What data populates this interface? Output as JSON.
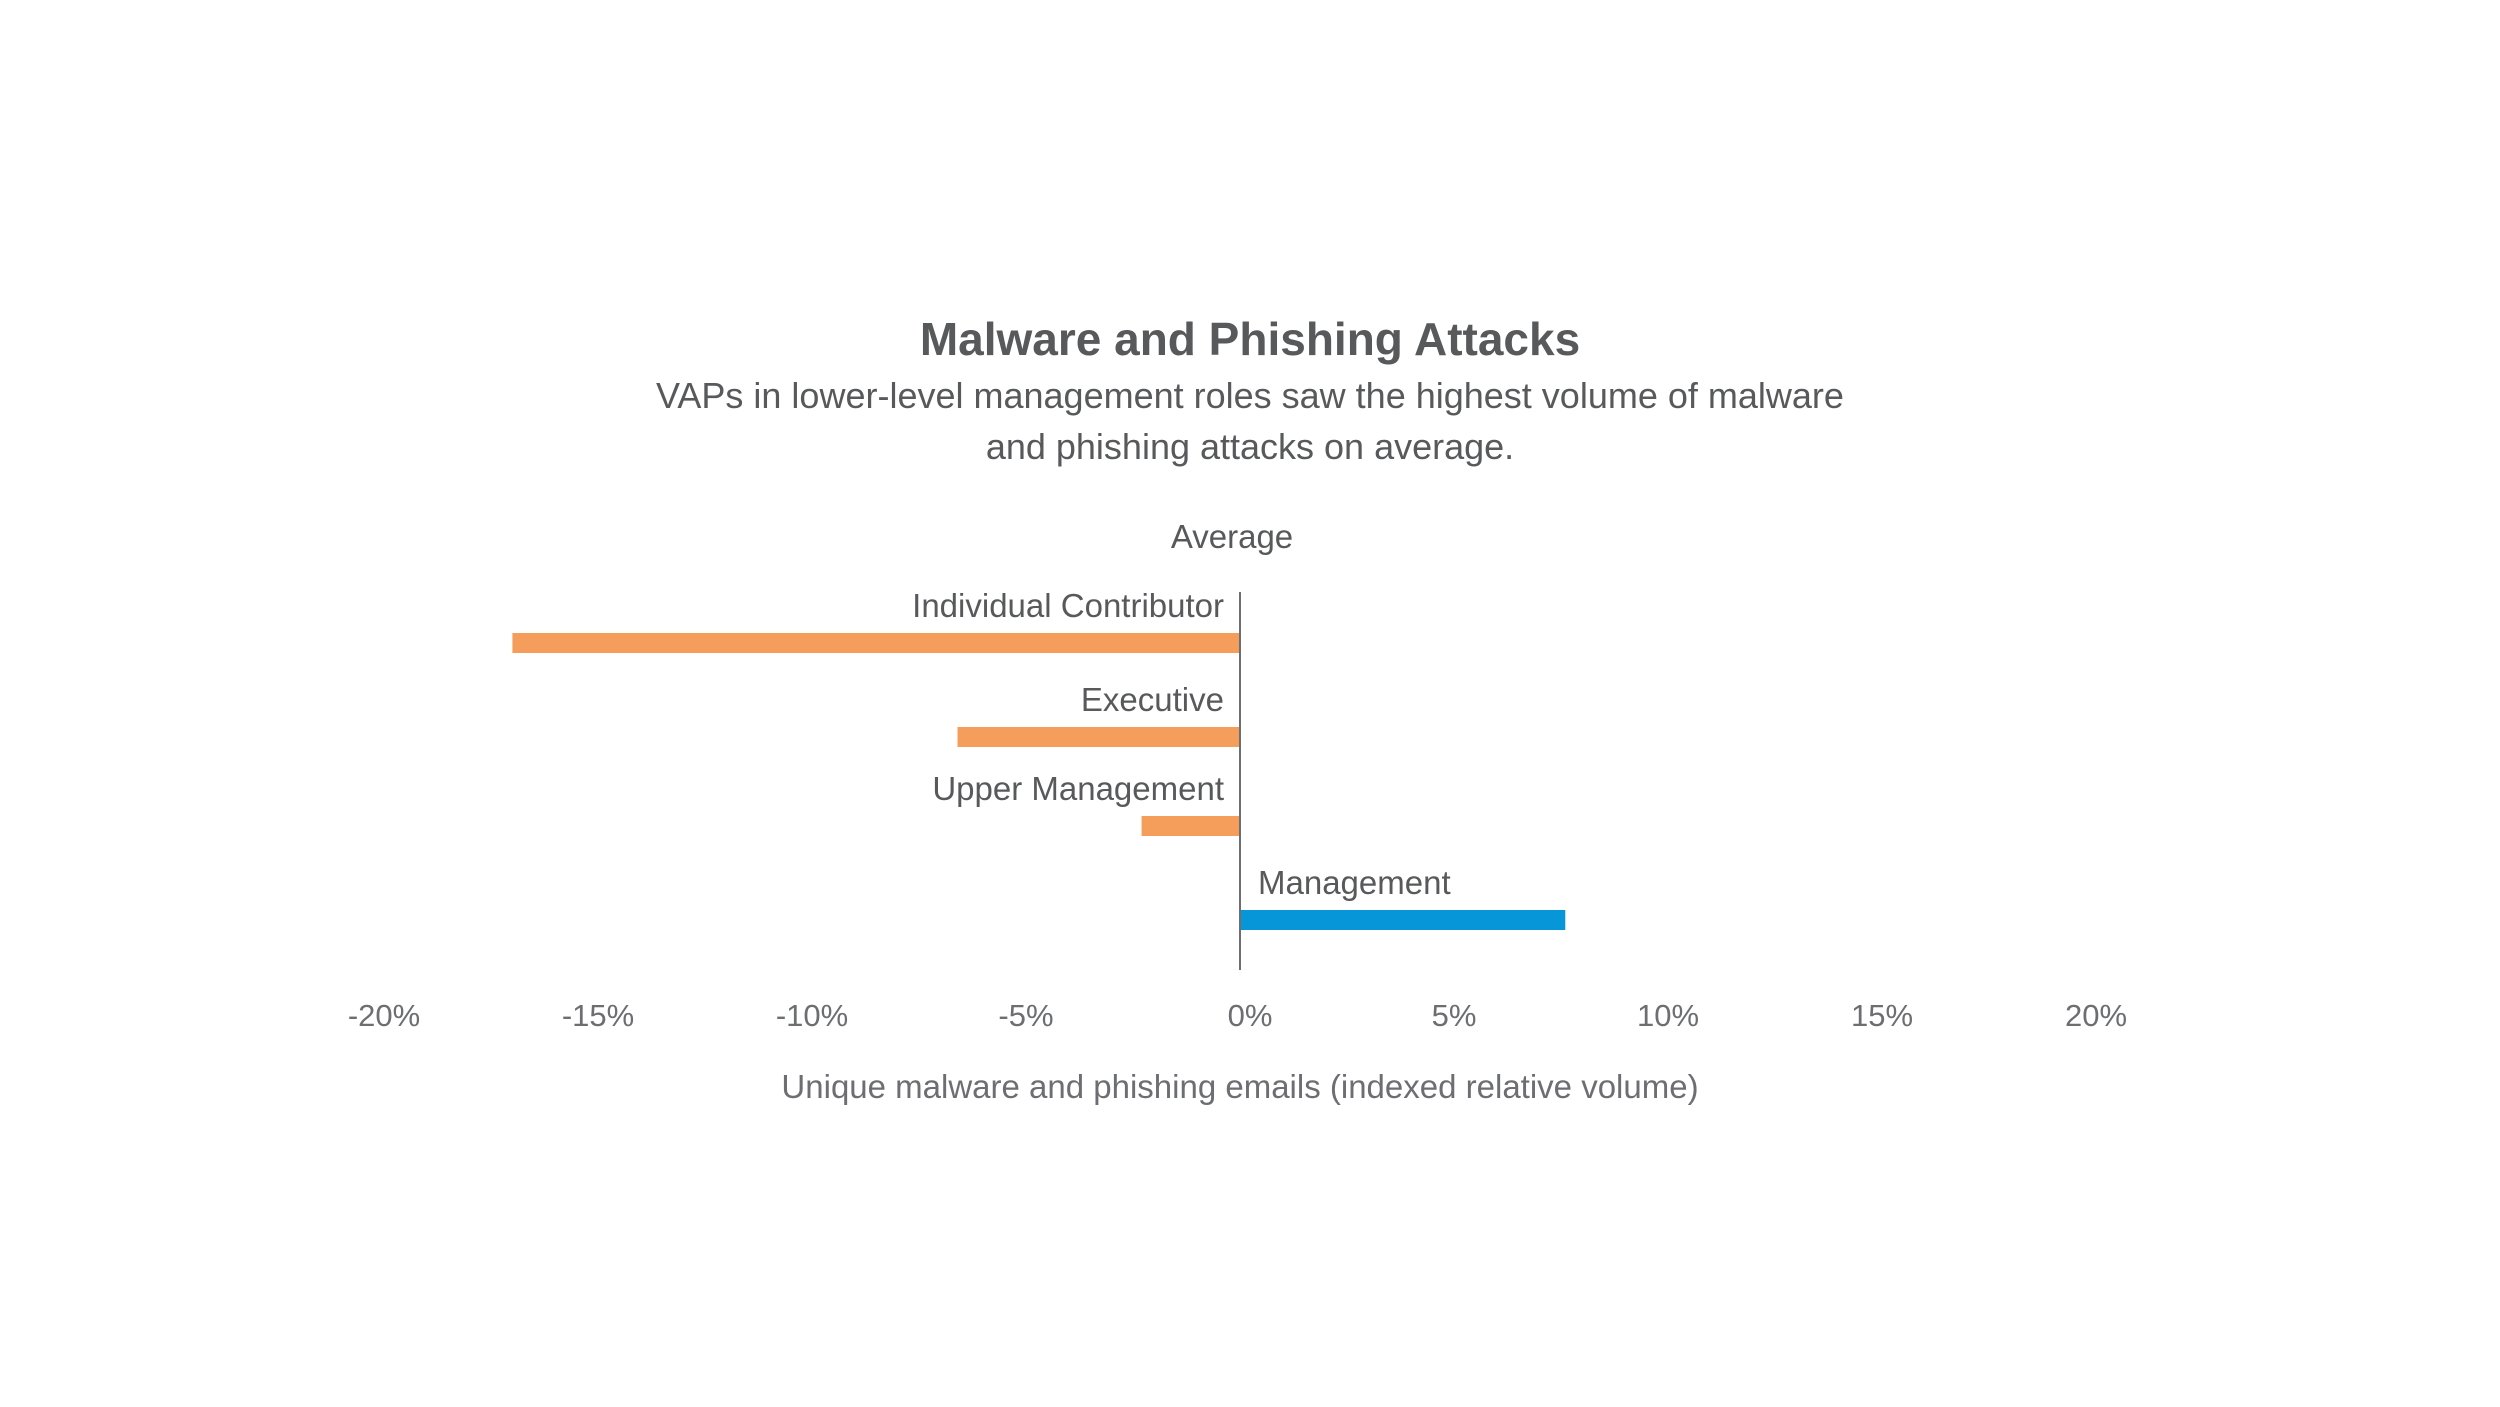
{
  "chart_data": {
    "type": "bar",
    "orientation": "horizontal",
    "title": "Malware and Phishing Attacks",
    "subtitle_lines": [
      "VAPs in lower-level management roles saw the highest volume of malware",
      "and phishing attacks on average."
    ],
    "reference_line_label": "Average",
    "categories": [
      "Individual Contributor",
      "Executive",
      "Upper Management",
      "Management"
    ],
    "values": [
      -17,
      -6.6,
      -2.3,
      7.6
    ],
    "bar_colors": [
      "#f59e5c",
      "#f59e5c",
      "#f59e5c",
      "#0796d8"
    ],
    "xlabel": "Unique malware and phishing emails (indexed relative volume)",
    "ylabel": "",
    "xlim": [
      -20,
      20
    ],
    "ticks": [
      -20,
      -15,
      -10,
      -5,
      0,
      5,
      10,
      15,
      20
    ],
    "tick_labels": [
      "-20%",
      "-15%",
      "-10%",
      "-5%",
      "0%",
      "5%",
      "10%",
      "15%",
      "20%"
    ],
    "grid": false,
    "legend": "none"
  }
}
